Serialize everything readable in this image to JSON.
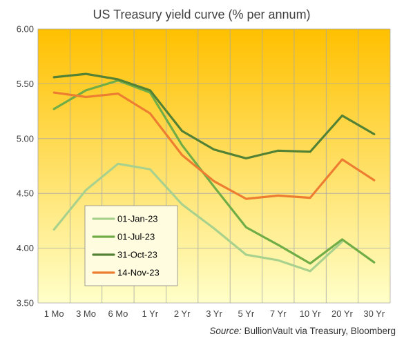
{
  "chart_data": {
    "type": "line",
    "title": "US Treasury yield curve (% per annum)",
    "categories": [
      "1 Mo",
      "3 Mo",
      "6 Mo",
      "1 Yr",
      "2 Yr",
      "3 Yr",
      "5 Yr",
      "7 Yr",
      "10 Yr",
      "20 Yr",
      "30 Yr"
    ],
    "ylim": [
      3.5,
      6.0
    ],
    "yticks": [
      "3.50",
      "4.00",
      "4.50",
      "5.00",
      "5.50",
      "6.00"
    ],
    "ytick_values": [
      3.5,
      4.0,
      4.5,
      5.0,
      5.5,
      6.0
    ],
    "grid": true,
    "legend_position": "bottom-left",
    "series": [
      {
        "name": "01-Jan-23",
        "color": "#a9d18e",
        "values": [
          4.17,
          4.53,
          4.77,
          4.72,
          4.4,
          4.18,
          3.94,
          3.89,
          3.79,
          4.06,
          null
        ]
      },
      {
        "name": "01-Jul-23",
        "color": "#70ad47",
        "values": [
          5.27,
          5.44,
          5.53,
          5.42,
          4.94,
          4.56,
          4.19,
          4.03,
          3.86,
          4.08,
          3.87
        ]
      },
      {
        "name": "31-Oct-23",
        "color": "#548235",
        "values": [
          5.56,
          5.59,
          5.54,
          5.44,
          5.07,
          4.9,
          4.82,
          4.89,
          4.88,
          5.21,
          5.04
        ]
      },
      {
        "name": "14-Nov-23",
        "color": "#ed7d31",
        "values": [
          5.42,
          5.38,
          5.41,
          5.23,
          4.85,
          4.61,
          4.45,
          4.48,
          4.46,
          4.81,
          4.62
        ]
      }
    ],
    "source_prefix": "Source:",
    "source_text": " BullionVault via Treasury, Bloomberg"
  }
}
